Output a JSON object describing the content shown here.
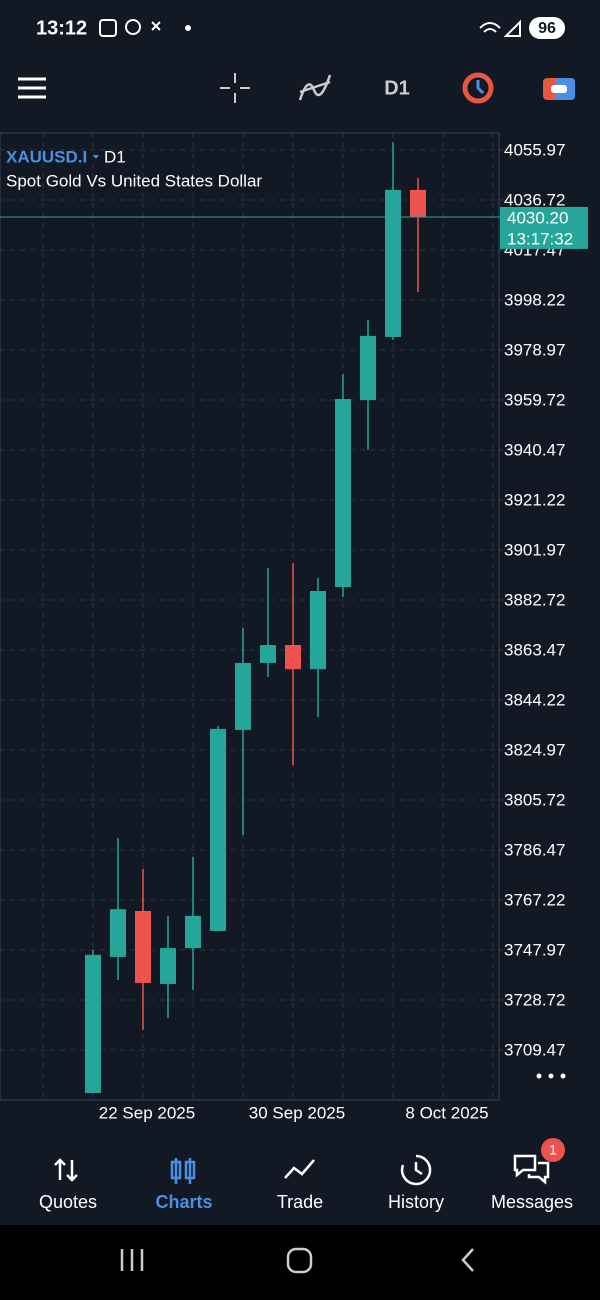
{
  "status_bar": {
    "time": "13:12",
    "battery": "96"
  },
  "toolbar": {
    "timeframe": "D1"
  },
  "chart_data": {
    "type": "candlestick",
    "symbol": "XAUUSD.I",
    "timeframe": "D1",
    "description": "Spot Gold Vs United States Dollar",
    "categories": [
      null,
      null,
      "22 Sep 2025",
      null,
      null,
      null,
      null,
      null,
      "30 Sep 2025",
      null,
      null,
      null,
      null,
      null,
      "8 Oct 2025"
    ],
    "open": [
      3692.9,
      3745.3,
      3763.0,
      3734.9,
      3748.7,
      3755.3,
      3832.7,
      3858.5,
      3865.4,
      3856.1,
      3887.7,
      3959.7,
      3984.0,
      4040.6,
      null
    ],
    "close": [
      3746.1,
      3763.7,
      3735.3,
      3748.7,
      3761.1,
      3833.1,
      3858.5,
      3865.4,
      3856.1,
      3886.2,
      3960.1,
      3984.4,
      4040.6,
      4030.2,
      null
    ],
    "high": [
      3748.0,
      3791.1,
      3779.2,
      3761.1,
      3783.8,
      3834.2,
      3871.9,
      3895.0,
      3896.9,
      3891.2,
      3969.7,
      3990.5,
      4059.0,
      4045.2,
      null
    ],
    "low": [
      3692.9,
      3736.4,
      3717.2,
      3721.8,
      3732.6,
      3755.3,
      3792.2,
      3853.1,
      3819.2,
      3837.7,
      3883.9,
      3940.5,
      3982.8,
      4001.3,
      null
    ],
    "up_color": "#26a69a",
    "down_color": "#ef5350",
    "ylim": [
      3690.22,
      4062.52
    ],
    "yticks": [
      4055.97,
      4036.72,
      4017.47,
      3998.22,
      3978.97,
      3959.72,
      3940.47,
      3921.22,
      3901.97,
      3882.72,
      3863.47,
      3844.22,
      3824.97,
      3805.72,
      3786.47,
      3767.22,
      3747.97,
      3728.72,
      3709.47
    ],
    "current_price": {
      "value": 4030.2,
      "label": "4030.20"
    },
    "current_time": "13:17:32",
    "grid": true
  },
  "nav": [
    {
      "label": "Quotes"
    },
    {
      "label": "Charts"
    },
    {
      "label": "Trade"
    },
    {
      "label": "History"
    },
    {
      "label": "Messages"
    }
  ],
  "messages_badge": "1"
}
